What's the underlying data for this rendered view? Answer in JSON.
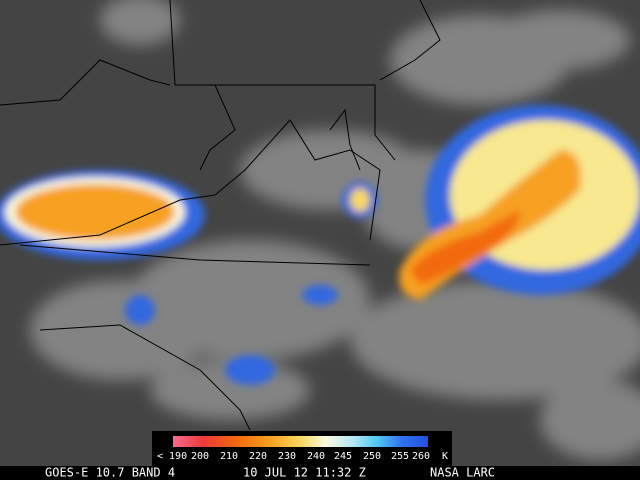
{
  "legend": {
    "labels": [
      "< 190",
      "200",
      "210",
      "220",
      "230",
      "240",
      "245",
      "250",
      "255",
      "260",
      "K"
    ]
  },
  "footer": {
    "satellite": "GOES-E 10.7 BAND 4",
    "time": "10 JUL 12 11:32 Z",
    "source": "NASA LARC"
  }
}
